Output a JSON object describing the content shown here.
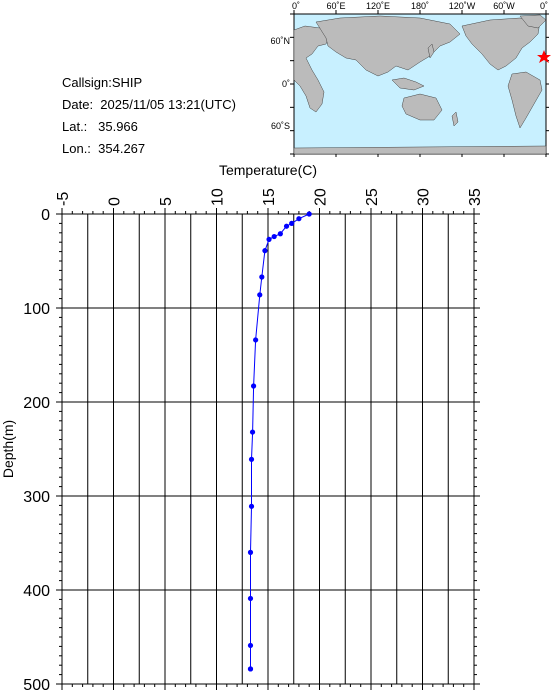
{
  "info": {
    "callsign": "Callsign:SHIP",
    "date": "Date:  2025/11/05 13:21(UTC)",
    "lat": "Lat.:   35.966",
    "lon": "Lon.:  354.267"
  },
  "map": {
    "lon_labels": [
      "0˚",
      "60˚E",
      "120˚E",
      "180˚",
      "120˚W",
      "60˚W",
      "0˚"
    ],
    "lat_labels": [
      "60˚N",
      "0˚",
      "60˚S"
    ],
    "station_marker_color": "#ff0000",
    "ocean_color": "#c8f0ff",
    "land_color": "#bbbbbb"
  },
  "chart_data": {
    "type": "line",
    "title": "",
    "xlabel": "Temperature(C)",
    "ylabel": "Depth(m)",
    "xlim": [
      -5,
      35
    ],
    "ylim": [
      0,
      500
    ],
    "x_ticks": [
      "-5",
      "0",
      "5",
      "10",
      "15",
      "20",
      "25",
      "30",
      "35"
    ],
    "y_ticks": [
      "0",
      "100",
      "200",
      "300",
      "400",
      "500"
    ],
    "grid": true,
    "series_color": "#0000ff",
    "series": [
      {
        "x": [
          19.0,
          18.0,
          17.3,
          16.8,
          16.2,
          15.6,
          15.1,
          14.7,
          14.4,
          14.2,
          13.8,
          13.6,
          13.5,
          13.4,
          13.4,
          13.3,
          13.3,
          13.3,
          13.3,
          13.3
        ],
        "y": [
          0,
          5,
          10,
          13,
          21,
          24,
          27,
          39,
          67,
          86,
          134,
          183,
          232,
          261,
          311,
          360,
          409,
          459,
          484,
          484
        ]
      }
    ]
  }
}
